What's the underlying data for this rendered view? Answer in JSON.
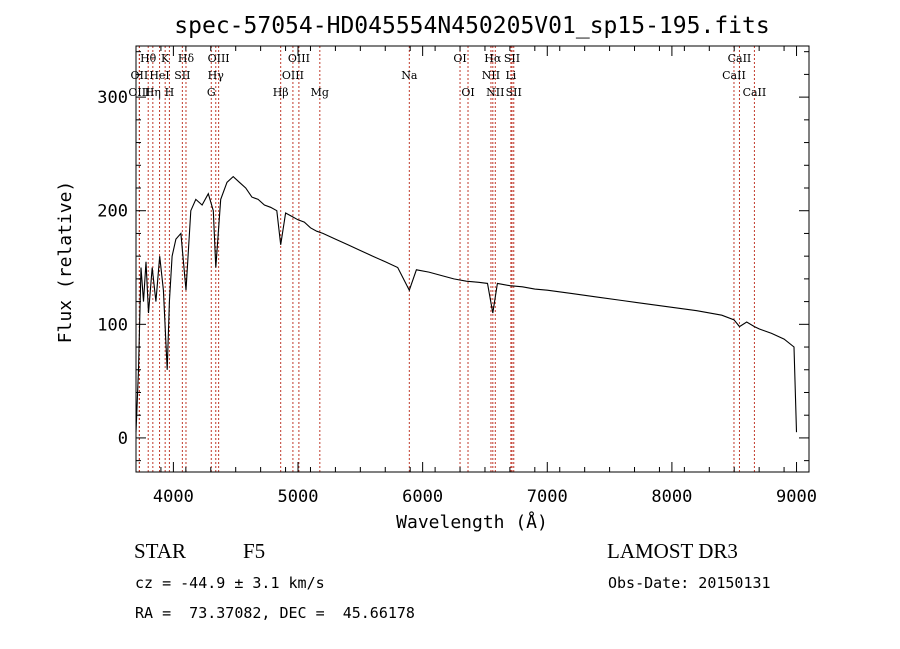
{
  "chart_data": {
    "type": "line",
    "title": "spec-57054-HD045554N450205V01_sp15-195.fits",
    "xlabel": "Wavelength (Å)",
    "ylabel": "Flux (relative)",
    "xlim": [
      3700,
      9100
    ],
    "ylim": [
      -30,
      345
    ],
    "xticks": [
      4000,
      5000,
      6000,
      7000,
      8000,
      9000
    ],
    "yticks": [
      0,
      100,
      200,
      300
    ],
    "spectrum": {
      "x": [
        3700,
        3720,
        3740,
        3760,
        3780,
        3800,
        3830,
        3860,
        3890,
        3920,
        3950,
        3968,
        3990,
        4020,
        4060,
        4101,
        4140,
        4180,
        4230,
        4280,
        4320,
        4340,
        4380,
        4430,
        4480,
        4530,
        4580,
        4630,
        4680,
        4730,
        4780,
        4830,
        4861,
        4900,
        4950,
        5000,
        5050,
        5100,
        5150,
        5200,
        5300,
        5400,
        5500,
        5600,
        5700,
        5800,
        5893,
        5950,
        6050,
        6150,
        6250,
        6350,
        6450,
        6520,
        6563,
        6600,
        6700,
        6800,
        6900,
        7000,
        7200,
        7400,
        7600,
        7800,
        8000,
        8200,
        8400,
        8498,
        8542,
        8600,
        8662,
        8700,
        8800,
        8900,
        8980,
        9000
      ],
      "y": [
        5,
        60,
        150,
        120,
        155,
        110,
        150,
        120,
        160,
        130,
        60,
        120,
        160,
        175,
        180,
        130,
        200,
        210,
        205,
        215,
        200,
        150,
        210,
        225,
        230,
        225,
        220,
        212,
        210,
        205,
        203,
        200,
        170,
        198,
        195,
        192,
        190,
        185,
        182,
        180,
        175,
        170,
        165,
        160,
        155,
        150,
        130,
        148,
        146,
        143,
        140,
        138,
        137,
        136,
        110,
        136,
        134,
        133,
        131,
        130,
        127,
        124,
        121,
        118,
        115,
        112,
        108,
        104,
        98,
        102,
        98,
        96,
        92,
        87,
        80,
        5
      ],
      "color": "#000000"
    },
    "spectral_lines": [
      {
        "label": "OII",
        "x": 3727,
        "row": 2
      },
      {
        "label": "OIII",
        "x": 3727,
        "row": 3
      },
      {
        "label": "Hθ",
        "x": 3798,
        "row": 1
      },
      {
        "label": "Hη",
        "x": 3835,
        "row": 3
      },
      {
        "label": "HeI",
        "x": 3889,
        "row": 2
      },
      {
        "label": "K",
        "x": 3934,
        "row": 1
      },
      {
        "label": "H",
        "x": 3968,
        "row": 3
      },
      {
        "label": "Hδ",
        "x": 4101,
        "row": 1
      },
      {
        "label": "SII",
        "x": 4072,
        "row": 2
      },
      {
        "label": "OIII",
        "x": 4363,
        "row": 1
      },
      {
        "label": "Hγ",
        "x": 4340,
        "row": 2
      },
      {
        "label": "G",
        "x": 4304,
        "row": 3
      },
      {
        "label": "Hβ",
        "x": 4861,
        "row": 3
      },
      {
        "label": "OIII",
        "x": 5007,
        "row": 1
      },
      {
        "label": "OIII",
        "x": 4959,
        "row": 2
      },
      {
        "label": "Mg",
        "x": 5175,
        "row": 3
      },
      {
        "label": "Na",
        "x": 5893,
        "row": 2
      },
      {
        "label": "OI",
        "x": 6300,
        "row": 1
      },
      {
        "label": "OI",
        "x": 6364,
        "row": 3
      },
      {
        "label": "Hα",
        "x": 6563,
        "row": 1
      },
      {
        "label": "NII",
        "x": 6548,
        "row": 2
      },
      {
        "label": "NII",
        "x": 6583,
        "row": 3
      },
      {
        "label": "SII",
        "x": 6717,
        "row": 1
      },
      {
        "label": "Li",
        "x": 6708,
        "row": 2
      },
      {
        "label": "SII",
        "x": 6731,
        "row": 3
      },
      {
        "label": "CaII",
        "x": 8542,
        "row": 1
      },
      {
        "label": "CaII",
        "x": 8498,
        "row": 2
      },
      {
        "label": "CaII",
        "x": 8662,
        "row": 3
      }
    ],
    "line_marker_color": "#c0392b"
  },
  "info": {
    "class_label": "STAR",
    "subclass": "F5",
    "survey": "LAMOST DR3",
    "cz_line": "cz = -44.9 ± 3.1 km/s",
    "obs_date": "Obs-Date: 20150131",
    "coords": "RA =  73.37082, DEC =  45.66178"
  }
}
